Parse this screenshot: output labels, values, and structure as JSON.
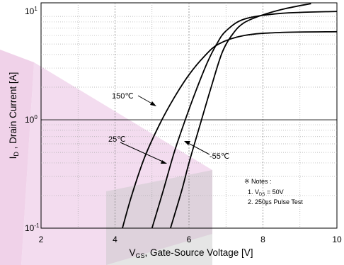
{
  "chart_data": {
    "type": "line",
    "x_axis": {
      "title_main": "V",
      "title_sub": "GS",
      "title_rest": ", Gate-Source Voltage  [V]",
      "range": [
        2,
        10
      ],
      "ticks": [
        {
          "value": 2,
          "label": "2"
        },
        {
          "value": 4,
          "label": "4"
        },
        {
          "value": 6,
          "label": "6"
        },
        {
          "value": 8,
          "label": "8"
        },
        {
          "value": 10,
          "label": "10"
        }
      ]
    },
    "y_axis": {
      "title_main": "I",
      "title_sub": "D",
      "title_rest": " , Drain Current  [A]",
      "scale": "log",
      "range": [
        0.1,
        12
      ],
      "ticks": [
        {
          "value": 0.1,
          "base": "10",
          "exp": "-1"
        },
        {
          "value": 1,
          "base": "10",
          "exp": "0"
        },
        {
          "value": 10,
          "base": "10",
          "exp": "1"
        }
      ]
    },
    "grid": true,
    "series": [
      {
        "name": "150℃",
        "x": [
          4.2,
          4.45,
          4.8,
          5.2,
          5.6,
          6.0,
          6.4,
          6.8,
          7.5,
          8.5,
          10.0
        ],
        "y": [
          0.1,
          0.2,
          0.45,
          0.9,
          1.6,
          2.6,
          3.8,
          5.0,
          6.0,
          6.4,
          6.5
        ]
      },
      {
        "name": "25℃",
        "x": [
          5.0,
          5.3,
          5.6,
          5.9,
          6.2,
          6.5,
          6.75,
          7.0,
          7.5,
          8.5,
          10.0
        ],
        "y": [
          0.1,
          0.22,
          0.5,
          1.0,
          1.9,
          3.4,
          5.0,
          6.6,
          8.5,
          9.6,
          10.0
        ]
      },
      {
        "name": "-55℃",
        "x": [
          5.5,
          5.8,
          6.0,
          6.3,
          6.6,
          6.9,
          7.2,
          7.5,
          8.0,
          8.6,
          9.3
        ],
        "y": [
          0.1,
          0.22,
          0.4,
          0.9,
          2.0,
          4.2,
          6.3,
          7.9,
          9.3,
          10.6,
          11.8
        ]
      }
    ],
    "annotations": [
      {
        "text": "150℃",
        "series": "150℃"
      },
      {
        "text": "25℃",
        "series": "25℃"
      },
      {
        "text": "-55℃",
        "series": "-55℃"
      }
    ],
    "notes": {
      "heading": "※ Notes :",
      "line1_prefix": "1. V",
      "line1_sub": "DS",
      "line1_rest": " = 50V",
      "line2": "2. 250㎲ Pulse Test"
    }
  }
}
